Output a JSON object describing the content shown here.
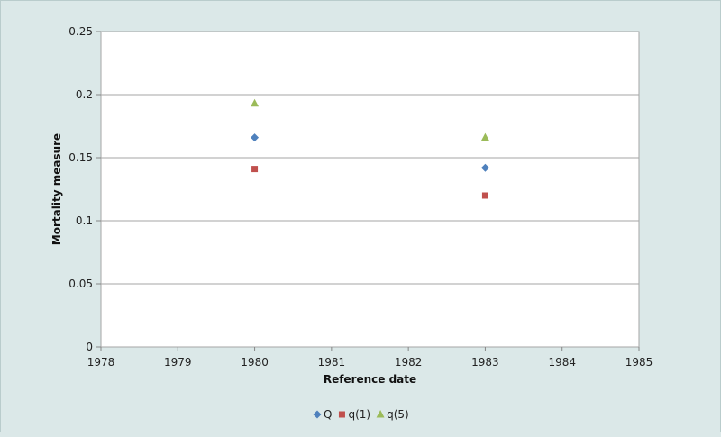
{
  "chart_data": {
    "type": "scatter",
    "title": "",
    "xlabel": "Reference date",
    "ylabel": "Mortality  measure",
    "xlim": [
      1978,
      1985
    ],
    "ylim": [
      0,
      0.25
    ],
    "x_ticks": [
      1978,
      1979,
      1980,
      1981,
      1982,
      1983,
      1984,
      1985
    ],
    "y_ticks": [
      0,
      0.05,
      0.1,
      0.15,
      0.2,
      0.25
    ],
    "y_tick_labels": [
      "0",
      "0.05",
      "0.1",
      "0.15",
      "0.2",
      "0.25"
    ],
    "grid": "horizontal",
    "legend_position": "bottom",
    "series": [
      {
        "name": "Q",
        "marker": "diamond",
        "color": "#4f81bd",
        "points": [
          {
            "x": 1980,
            "y": 0.166
          },
          {
            "x": 1983,
            "y": 0.142
          }
        ]
      },
      {
        "name": "q(1)",
        "marker": "square",
        "color": "#c0504d",
        "points": [
          {
            "x": 1980,
            "y": 0.141
          },
          {
            "x": 1983,
            "y": 0.12
          }
        ]
      },
      {
        "name": "q(5)",
        "marker": "triangle",
        "color": "#9bbb59",
        "points": [
          {
            "x": 1980,
            "y": 0.193
          },
          {
            "x": 1983,
            "y": 0.166
          }
        ]
      }
    ]
  }
}
